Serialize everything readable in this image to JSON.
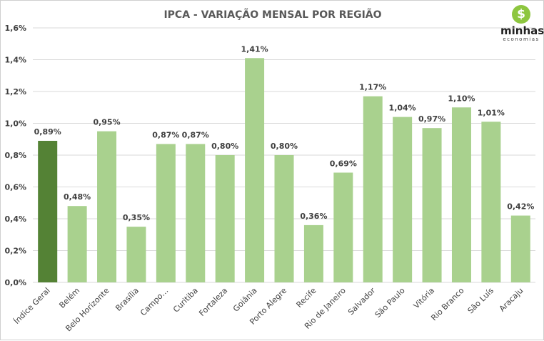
{
  "logo": {
    "name": "minhas",
    "sub": "economias",
    "color": "#8dc63f"
  },
  "chart_data": {
    "type": "bar",
    "title": "IPCA - VARIAÇÃO MENSAL POR REGIÃO",
    "categories": [
      "Índice Geral",
      "Belém",
      "Belo Horizonte",
      "Brasília",
      "Campo…",
      "Curitiba",
      "Fortaleza",
      "Goiânia",
      "Porto Alegre",
      "Recife",
      "Rio de Janeiro",
      "Salvador",
      "São Paulo",
      "Vitória",
      "Rio Branco",
      "São Luís",
      "Aracaju"
    ],
    "values": [
      0.89,
      0.48,
      0.95,
      0.35,
      0.87,
      0.87,
      0.8,
      1.41,
      0.8,
      0.36,
      0.69,
      1.17,
      1.04,
      0.97,
      1.1,
      1.01,
      0.42
    ],
    "data_labels": [
      "0,89%",
      "0,48%",
      "0,95%",
      "0,35%",
      "0,87%",
      "0,87%",
      "0,80%",
      "1,41%",
      "0,80%",
      "0,36%",
      "0,69%",
      "1,17%",
      "1,04%",
      "0,97%",
      "1,10%",
      "1,01%",
      "0,42%"
    ],
    "yticks": [
      "0,0%",
      "0,2%",
      "0,4%",
      "0,6%",
      "0,8%",
      "1,0%",
      "1,2%",
      "1,4%",
      "1,6%"
    ],
    "ylim": [
      0,
      1.6
    ],
    "grid": true,
    "colors": {
      "highlight": "#548235",
      "bar": "#a9d18e",
      "grid": "#d9d9d9"
    },
    "xlabel": "",
    "ylabel": ""
  }
}
